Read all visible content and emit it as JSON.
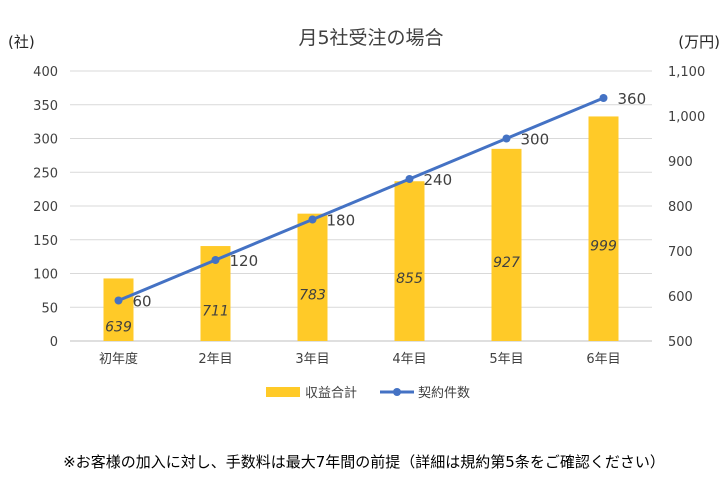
{
  "chart_data": {
    "type": "bar+line",
    "title": "月5社受注の場合",
    "categories": [
      "初年度",
      "2年目",
      "3年目",
      "4年目",
      "5年目",
      "6年目"
    ],
    "left_axis": {
      "unit_label": "(社)",
      "range": [
        0,
        400
      ],
      "ticks": [
        "0",
        "50",
        "100",
        "150",
        "200",
        "250",
        "300",
        "350",
        "400"
      ],
      "tick_values": [
        0,
        50,
        100,
        150,
        200,
        250,
        300,
        350,
        400
      ]
    },
    "right_axis": {
      "unit_label": "(万円)",
      "range": [
        500,
        1100
      ],
      "ticks": [
        "500",
        "600",
        "700",
        "800",
        "900",
        "1,000",
        "1,100"
      ],
      "tick_values": [
        500,
        600,
        700,
        800,
        900,
        1000,
        1100
      ]
    },
    "series": [
      {
        "name": "収益合計",
        "kind": "bar",
        "axis": "right",
        "color": "#FFCA28",
        "values": [
          639,
          711,
          783,
          855,
          927,
          999
        ],
        "labels": [
          "639",
          "711",
          "783",
          "855",
          "927",
          "999"
        ]
      },
      {
        "name": "契約件数",
        "kind": "line",
        "axis": "left",
        "color": "#4472C4",
        "values": [
          60,
          120,
          180,
          240,
          300,
          360
        ],
        "labels": [
          "60",
          "120",
          "180",
          "240",
          "300",
          "360"
        ]
      }
    ],
    "grid": true,
    "legend_position": "bottom"
  },
  "footnote": "※お客様の加入に対し、手数料は最大7年間の前提（詳細は規約第5条をご確認ください）"
}
